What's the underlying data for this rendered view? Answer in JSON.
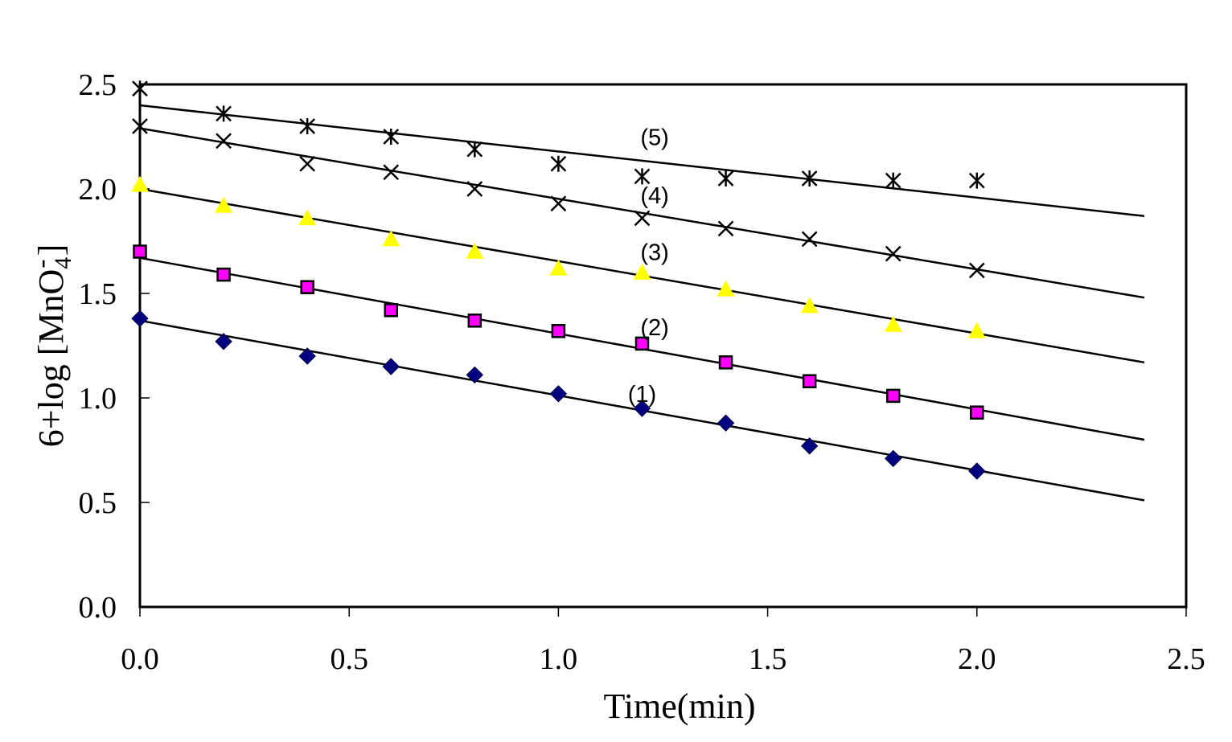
{
  "chart_data": {
    "type": "scatter",
    "title": "",
    "xlabel": "Time(min)",
    "ylabel_main": "6+log [MnO",
    "ylabel_sub": "4",
    "ylabel_sup": "-",
    "ylabel_close": "]",
    "xlim": [
      0,
      2.5
    ],
    "ylim": [
      0,
      2.5
    ],
    "xticks": [
      "0.0",
      "0.5",
      "1.0",
      "1.5",
      "2.0",
      "2.5"
    ],
    "yticks": [
      "0.0",
      "0.5",
      "1.0",
      "1.5",
      "2.0",
      "2.5"
    ],
    "grid": false,
    "legend": "none",
    "x": [
      0,
      0.2,
      0.4,
      0.6,
      0.8,
      1.0,
      1.2,
      1.4,
      1.6,
      1.8,
      2.0
    ],
    "series": [
      {
        "name": "(1)",
        "marker": "diamond",
        "color": "#000080",
        "values": [
          1.38,
          1.27,
          1.2,
          1.15,
          1.11,
          1.02,
          0.95,
          0.88,
          0.77,
          0.71,
          0.65
        ],
        "fit": {
          "x": [
            0,
            2.4
          ],
          "y": [
            1.37,
            0.51
          ]
        },
        "label_at": {
          "x": 1.2,
          "y": 0.98
        }
      },
      {
        "name": "(2)",
        "marker": "square",
        "color": "#FF00FF",
        "values": [
          1.7,
          1.59,
          1.53,
          1.42,
          1.37,
          1.32,
          1.26,
          1.17,
          1.08,
          1.01,
          0.93
        ],
        "fit": {
          "x": [
            0,
            2.4
          ],
          "y": [
            1.67,
            0.8
          ]
        },
        "label_at": {
          "x": 1.23,
          "y": 1.3
        }
      },
      {
        "name": "(3)",
        "marker": "triangle",
        "color": "#FFFF00",
        "values": [
          2.02,
          1.92,
          1.86,
          1.76,
          1.7,
          1.62,
          1.6,
          1.52,
          1.44,
          1.35,
          1.32
        ],
        "fit": {
          "x": [
            0,
            2.4
          ],
          "y": [
            2.0,
            1.17
          ]
        },
        "label_at": {
          "x": 1.23,
          "y": 1.66
        }
      },
      {
        "name": "(4)",
        "marker": "x",
        "color": "#000000",
        "values": [
          2.3,
          2.23,
          2.12,
          2.08,
          2.0,
          1.93,
          1.86,
          1.81,
          1.76,
          1.69,
          1.61
        ],
        "fit": {
          "x": [
            0,
            2.4
          ],
          "y": [
            2.29,
            1.48
          ]
        },
        "label_at": {
          "x": 1.23,
          "y": 1.93
        }
      },
      {
        "name": "(5)",
        "marker": "asterisk",
        "color": "#000000",
        "values": [
          2.48,
          2.36,
          2.3,
          2.25,
          2.19,
          2.12,
          2.06,
          2.05,
          2.05,
          2.04,
          2.04
        ],
        "fit": {
          "x": [
            0,
            2.4
          ],
          "y": [
            2.4,
            1.87
          ]
        },
        "label_at": {
          "x": 1.23,
          "y": 2.21
        }
      }
    ]
  }
}
